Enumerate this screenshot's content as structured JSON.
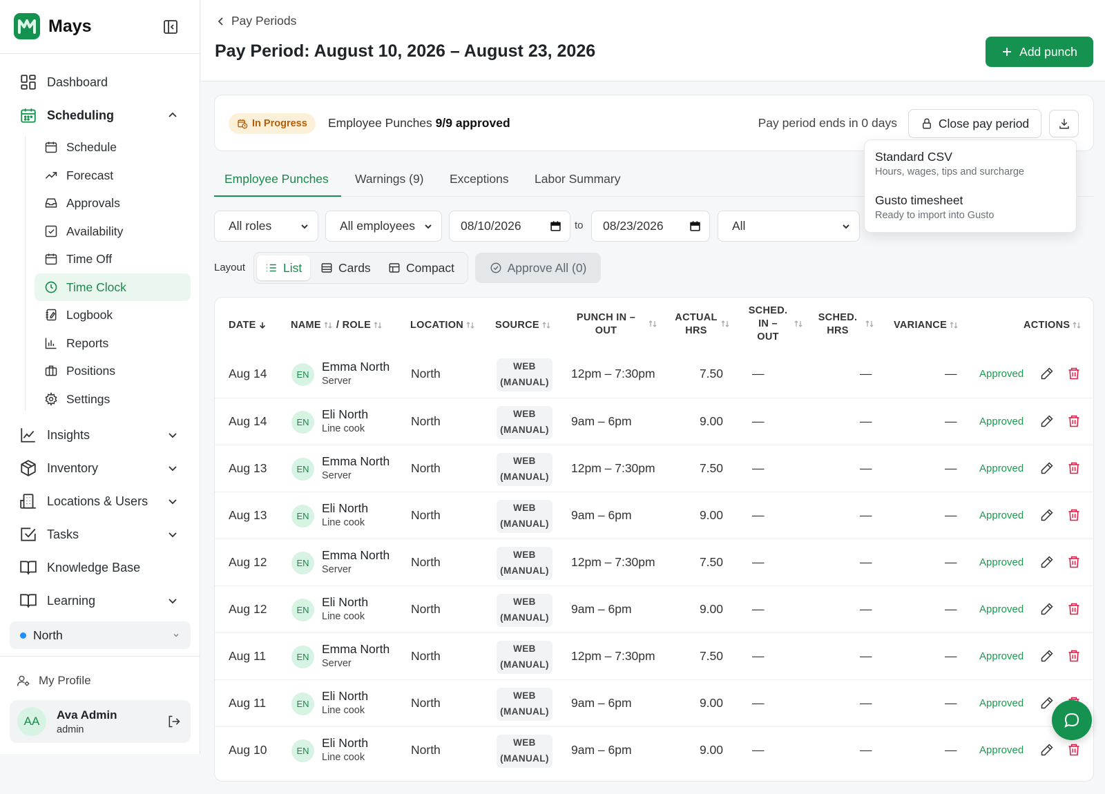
{
  "brand": {
    "name": "Mays"
  },
  "sidebar": {
    "nav": [
      {
        "label": "Dashboard",
        "icon": "dashboard-icon"
      },
      {
        "label": "Scheduling",
        "icon": "calendar-icon",
        "expanded": true
      },
      {
        "label": "Insights",
        "icon": "chart-line-icon"
      },
      {
        "label": "Inventory",
        "icon": "box-icon"
      },
      {
        "label": "Locations & Users",
        "icon": "building-icon"
      },
      {
        "label": "Tasks",
        "icon": "checkbox-icon"
      },
      {
        "label": "Knowledge Base",
        "icon": "book-icon"
      },
      {
        "label": "Learning",
        "icon": "book-open-icon"
      }
    ],
    "scheduling_items": [
      {
        "label": "Schedule",
        "icon": "calendar-icon"
      },
      {
        "label": "Forecast",
        "icon": "trend-up-icon"
      },
      {
        "label": "Approvals",
        "icon": "inbox-icon"
      },
      {
        "label": "Availability",
        "icon": "check-square-icon"
      },
      {
        "label": "Time Off",
        "icon": "calendar-icon"
      },
      {
        "label": "Time Clock",
        "icon": "clock-icon",
        "active": true
      },
      {
        "label": "Logbook",
        "icon": "notebook-icon"
      },
      {
        "label": "Reports",
        "icon": "bar-chart-icon"
      },
      {
        "label": "Positions",
        "icon": "briefcase-icon"
      },
      {
        "label": "Settings",
        "icon": "gear-icon"
      }
    ],
    "location": "North",
    "profile_link": "My Profile",
    "user": {
      "initials": "AA",
      "name": "Ava Admin",
      "role": "admin"
    }
  },
  "header": {
    "back_label": "Pay Periods",
    "title": "Pay Period: August 10, 2026 – August 23, 2026",
    "add_button": "Add punch"
  },
  "status": {
    "badge": "In Progress",
    "punches_label": "Employee Punches",
    "punches_count": "9/9 approved",
    "ends_text": "Pay period ends in 0 days",
    "close_button": "Close pay period"
  },
  "export_menu": [
    {
      "title": "Standard CSV",
      "subtitle": "Hours, wages, tips and surcharge"
    },
    {
      "title": "Gusto timesheet",
      "subtitle": "Ready to import into Gusto"
    }
  ],
  "tabs": [
    "Employee Punches",
    "Warnings (9)",
    "Exceptions",
    "Labor Summary"
  ],
  "filters": {
    "roles": "All roles",
    "employees": "All employees",
    "date_from": "08/10/2026",
    "to_label": "to",
    "date_to": "08/23/2026",
    "status": "All"
  },
  "layout": {
    "label": "Layout",
    "options": [
      "List",
      "Cards",
      "Compact"
    ],
    "selected": "List",
    "approve_all": "Approve All (0)"
  },
  "table": {
    "headers": {
      "date": "DATE",
      "name": "NAME",
      "role": "/ ROLE",
      "location": "LOCATION",
      "source": "SOURCE",
      "punch": "PUNCH IN – OUT",
      "actual": "ACTUAL HRS",
      "sched_in": "SCHED. IN – OUT",
      "sched_hrs": "SCHED. HRS",
      "variance": "VARIANCE",
      "actions": "ACTIONS"
    },
    "rows": [
      {
        "date": "Aug 14",
        "initials": "EN",
        "name": "Emma North",
        "role": "Server",
        "location": "North",
        "src1": "WEB",
        "src2": "(MANUAL)",
        "punch": "12pm – 7:30pm",
        "hours": "7.50",
        "sched_in": "—",
        "sched_hrs": "—",
        "variance": "—",
        "status": "Approved"
      },
      {
        "date": "Aug 14",
        "initials": "EN",
        "name": "Eli North",
        "role": "Line cook",
        "location": "North",
        "src1": "WEB",
        "src2": "(MANUAL)",
        "punch": "9am – 6pm",
        "hours": "9.00",
        "sched_in": "—",
        "sched_hrs": "—",
        "variance": "—",
        "status": "Approved"
      },
      {
        "date": "Aug 13",
        "initials": "EN",
        "name": "Emma North",
        "role": "Server",
        "location": "North",
        "src1": "WEB",
        "src2": "(MANUAL)",
        "punch": "12pm – 7:30pm",
        "hours": "7.50",
        "sched_in": "—",
        "sched_hrs": "—",
        "variance": "—",
        "status": "Approved"
      },
      {
        "date": "Aug 13",
        "initials": "EN",
        "name": "Eli North",
        "role": "Line cook",
        "location": "North",
        "src1": "WEB",
        "src2": "(MANUAL)",
        "punch": "9am – 6pm",
        "hours": "9.00",
        "sched_in": "—",
        "sched_hrs": "—",
        "variance": "—",
        "status": "Approved"
      },
      {
        "date": "Aug 12",
        "initials": "EN",
        "name": "Emma North",
        "role": "Server",
        "location": "North",
        "src1": "WEB",
        "src2": "(MANUAL)",
        "punch": "12pm – 7:30pm",
        "hours": "7.50",
        "sched_in": "—",
        "sched_hrs": "—",
        "variance": "—",
        "status": "Approved"
      },
      {
        "date": "Aug 12",
        "initials": "EN",
        "name": "Eli North",
        "role": "Line cook",
        "location": "North",
        "src1": "WEB",
        "src2": "(MANUAL)",
        "punch": "9am – 6pm",
        "hours": "9.00",
        "sched_in": "—",
        "sched_hrs": "—",
        "variance": "—",
        "status": "Approved"
      },
      {
        "date": "Aug 11",
        "initials": "EN",
        "name": "Emma North",
        "role": "Server",
        "location": "North",
        "src1": "WEB",
        "src2": "(MANUAL)",
        "punch": "12pm – 7:30pm",
        "hours": "7.50",
        "sched_in": "—",
        "sched_hrs": "—",
        "variance": "—",
        "status": "Approved"
      },
      {
        "date": "Aug 11",
        "initials": "EN",
        "name": "Eli North",
        "role": "Line cook",
        "location": "North",
        "src1": "WEB",
        "src2": "(MANUAL)",
        "punch": "9am – 6pm",
        "hours": "9.00",
        "sched_in": "—",
        "sched_hrs": "—",
        "variance": "—",
        "status": "Approved"
      },
      {
        "date": "Aug 10",
        "initials": "EN",
        "name": "Eli North",
        "role": "Line cook",
        "location": "North",
        "src1": "WEB",
        "src2": "(MANUAL)",
        "punch": "9am – 6pm",
        "hours": "9.00",
        "sched_in": "—",
        "sched_hrs": "—",
        "variance": "—",
        "status": "Approved"
      }
    ]
  },
  "colors": {
    "accent": "#15924f",
    "accent_text": "#1a8a4b",
    "badge_bg": "#fdf0d8",
    "badge_text": "#b65e0a",
    "danger": "#e11d48"
  }
}
